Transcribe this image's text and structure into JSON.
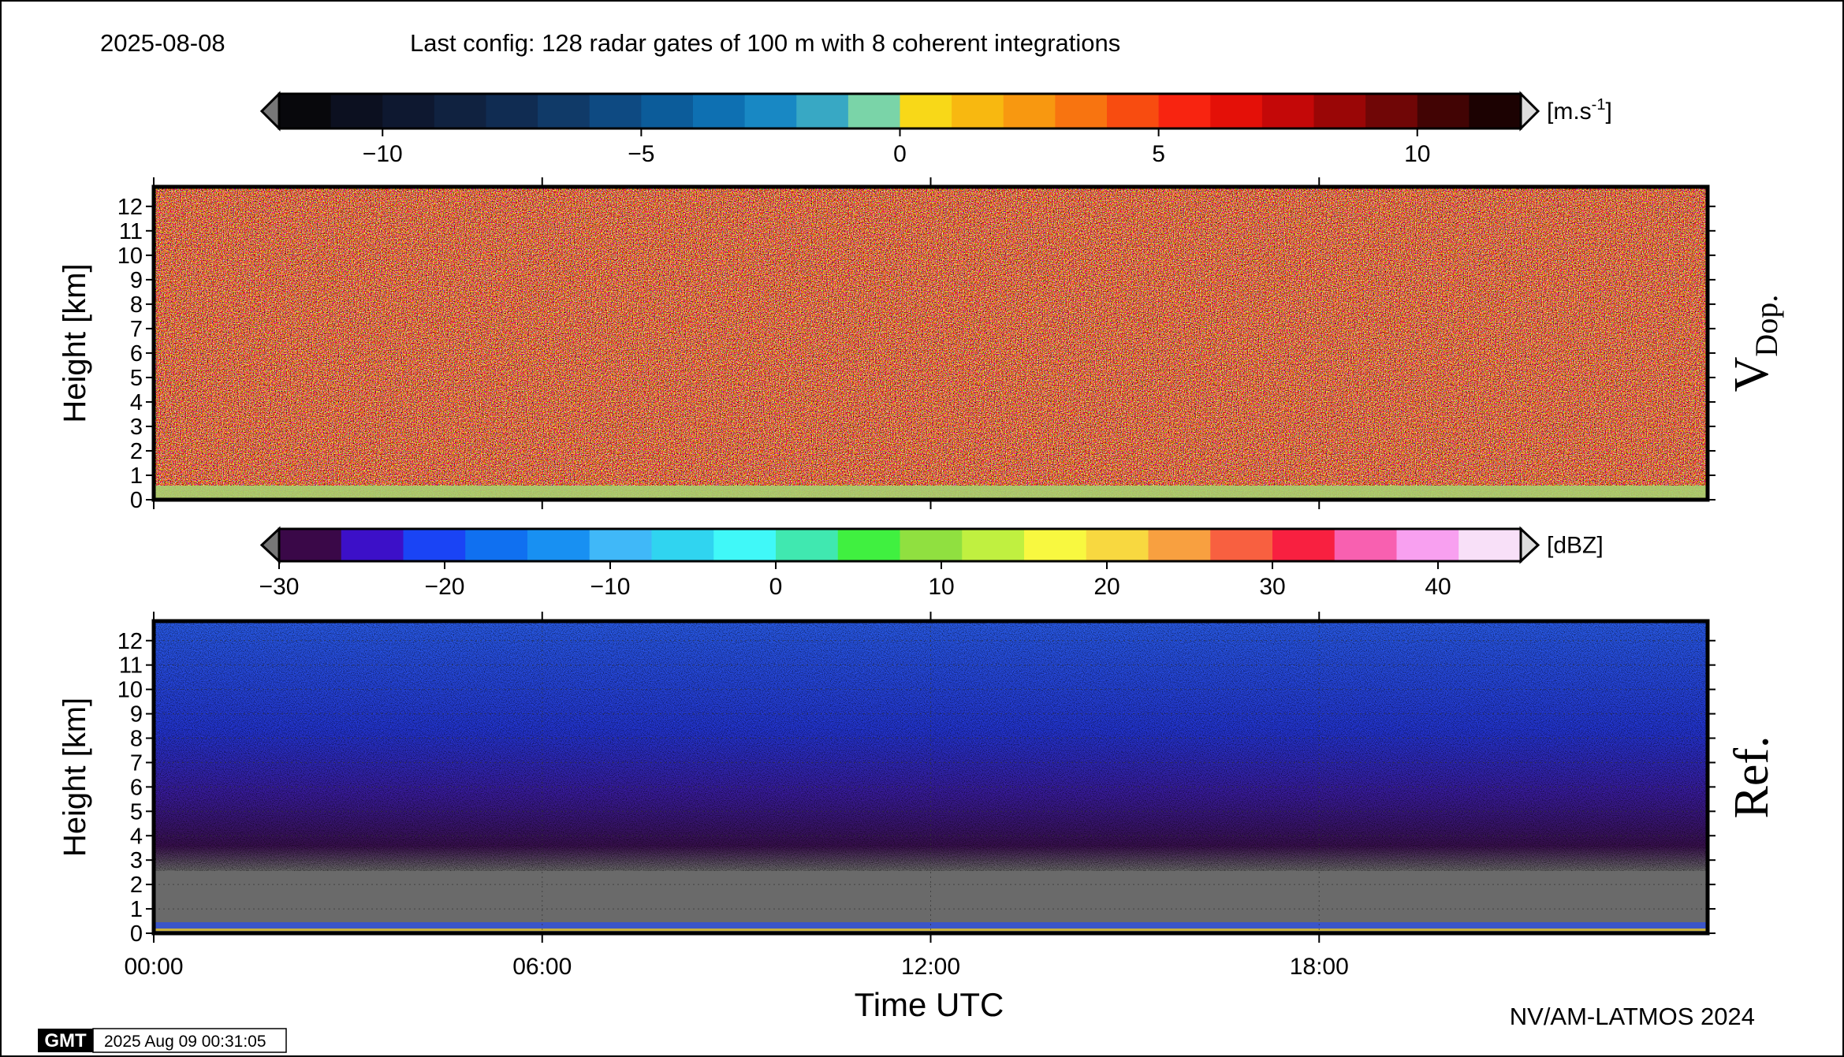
{
  "header": {
    "date": "2025-08-08",
    "config": "Last config: 128 radar gates of 100 m with 8 coherent integrations"
  },
  "footer": {
    "credit": "NV/AM-LATMOS 2024",
    "timestamp": "2025 Aug 09 00:31:05",
    "logo": "GMT"
  },
  "chart_data": [
    {
      "type": "heatmap",
      "ylabel": "Height [km]",
      "ylim": [
        0,
        12.8
      ],
      "yticks": [
        0,
        1,
        2,
        3,
        4,
        5,
        6,
        7,
        8,
        9,
        10,
        11,
        12
      ],
      "xlim": [
        0,
        24
      ],
      "xticks": [
        0,
        6,
        12,
        18
      ],
      "grid": false,
      "panel_label": "V",
      "panel_label_sub": "Dop.",
      "colorbar": {
        "clim": [
          -12,
          12
        ],
        "ticks": [
          {
            "value": -10,
            "label": "−10"
          },
          {
            "value": -5,
            "label": "−5"
          },
          0,
          5,
          10
        ],
        "unit": "[m.s",
        "unit_sup": "-1",
        "unit_end": "]",
        "colors": [
          "#08080c",
          "#0c1020",
          "#0e1830",
          "#102240",
          "#102c52",
          "#103a68",
          "#0e4a82",
          "#0c5c9a",
          "#0e70b2",
          "#1888c4",
          "#38a8c4",
          "#7ad4a8",
          "#f8d818",
          "#f8b810",
          "#f89810",
          "#f87410",
          "#f84c10",
          "#f82410",
          "#e41008",
          "#c40808",
          "#9a0606",
          "#700606",
          "#420404",
          "#1c0202"
        ]
      }
    },
    {
      "type": "heatmap",
      "ylabel": "Height [km]",
      "xlabel": "Time UTC",
      "ylim": [
        0,
        12.8
      ],
      "yticks": [
        0,
        1,
        2,
        3,
        4,
        5,
        6,
        7,
        8,
        9,
        10,
        11,
        12
      ],
      "xlim": [
        0,
        24
      ],
      "xticks": [
        {
          "value": 0,
          "label": "00:00"
        },
        {
          "value": 6,
          "label": "06:00"
        },
        {
          "value": 12,
          "label": "12:00"
        },
        {
          "value": 18,
          "label": "18:00"
        }
      ],
      "grid": true,
      "panel_label": "Ref.",
      "colorbar": {
        "clim": [
          -30,
          45
        ],
        "ticks": [
          {
            "value": -30,
            "label": "−30"
          },
          {
            "value": -20,
            "label": "−20"
          },
          {
            "value": -10,
            "label": "−10"
          },
          0,
          10,
          20,
          30,
          40
        ],
        "unit": "[dBZ]",
        "colors": [
          "#3a0848",
          "#3c10c8",
          "#1a44f5",
          "#1070f0",
          "#1890f2",
          "#40b8f8",
          "#30d4f0",
          "#40f8f8",
          "#40e8b0",
          "#40f040",
          "#90e040",
          "#c0f040",
          "#f8f840",
          "#f8d840",
          "#f8a040",
          "#f86040",
          "#f82040",
          "#f860b0",
          "#f8a0f0",
          "#f8e0f8"
        ]
      }
    }
  ]
}
